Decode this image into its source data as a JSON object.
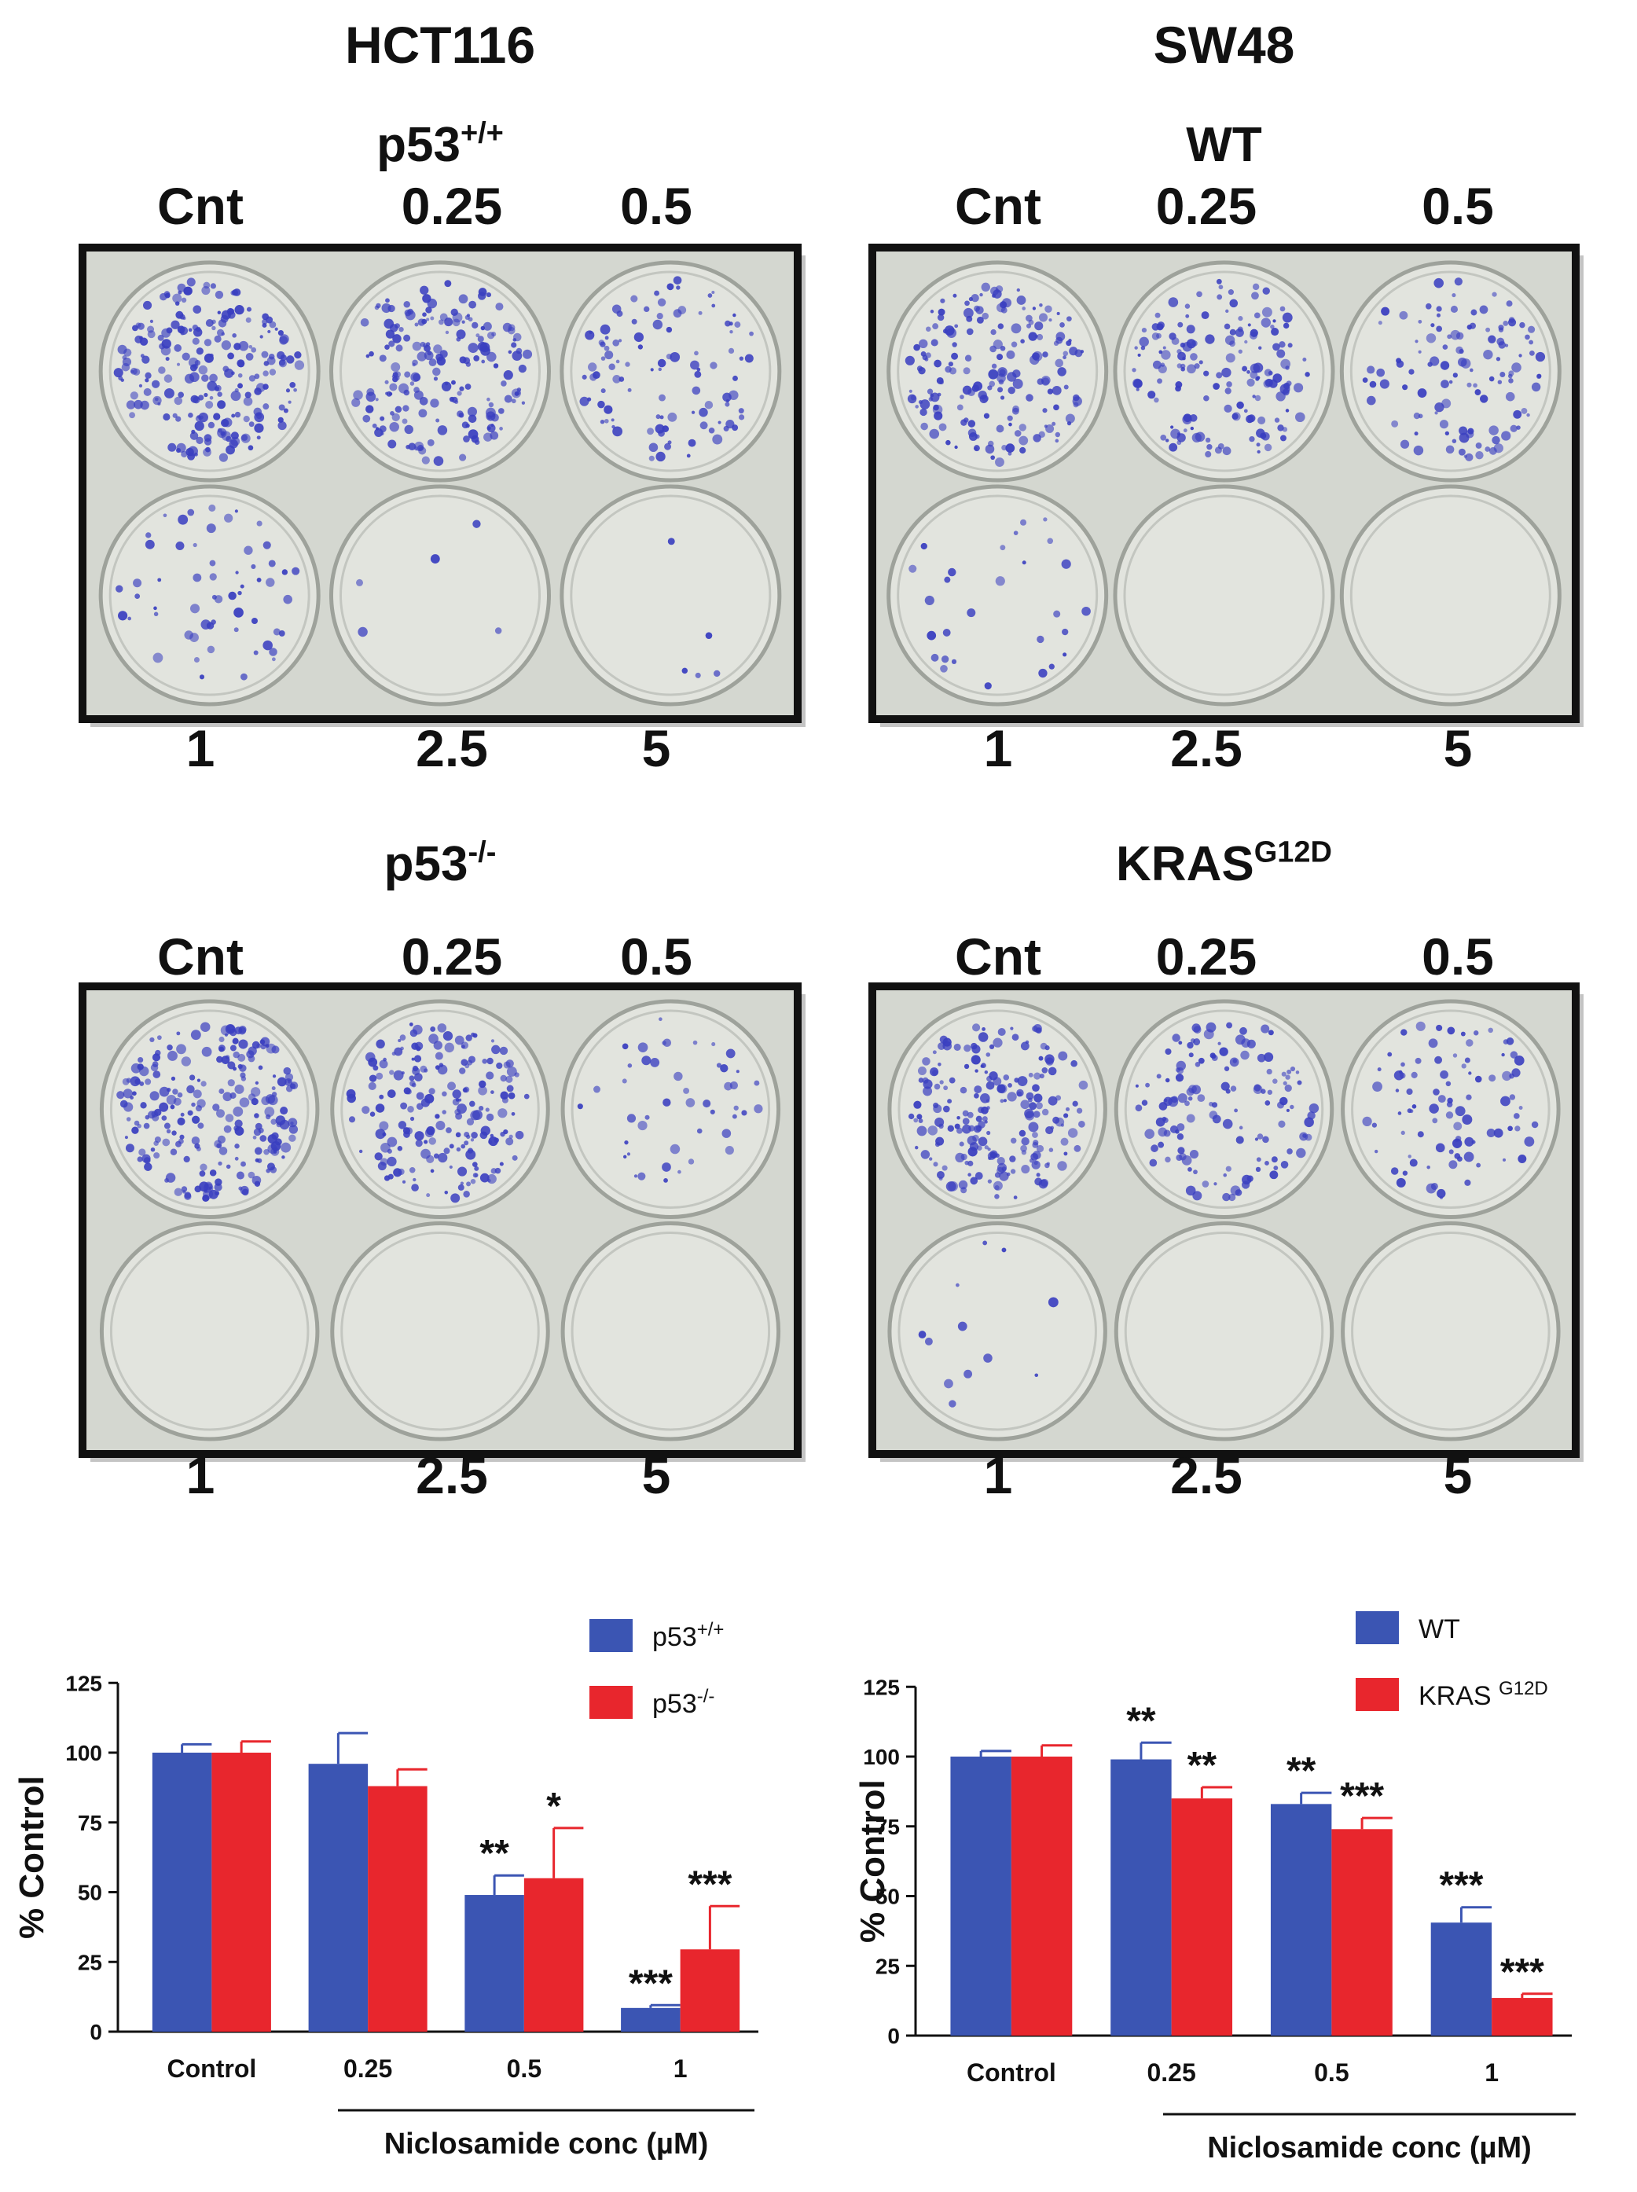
{
  "panels": [
    {
      "title": "HCT116",
      "plates": [
        {
          "label_base": "p53",
          "label_sup": "+/+",
          "top_labels": [
            "Cnt",
            "0.25",
            "0.5"
          ],
          "bottom_labels": [
            "1",
            "2.5",
            "5"
          ],
          "colony_density": [
            1.0,
            0.85,
            0.45,
            0.25,
            0.02,
            0.02
          ]
        },
        {
          "label_base": "p53",
          "label_sup": "-/-",
          "top_labels": [
            "Cnt",
            "0.25",
            "0.5"
          ],
          "bottom_labels": [
            "1",
            "2.5",
            "5"
          ],
          "colony_density": [
            1.0,
            0.85,
            0.2,
            0.0,
            0.0,
            0.0
          ]
        }
      ]
    },
    {
      "title": "SW48",
      "plates": [
        {
          "label_base": "WT",
          "label_sup": "",
          "top_labels": [
            "Cnt",
            "0.25",
            "0.5"
          ],
          "bottom_labels": [
            "1",
            "2.5",
            "5"
          ],
          "colony_density": [
            0.8,
            0.7,
            0.5,
            0.12,
            0.0,
            0.0
          ]
        },
        {
          "label_base": "KRAS",
          "label_sup": "G12D",
          "top_labels": [
            "Cnt",
            "0.25",
            "0.5"
          ],
          "bottom_labels": [
            "1",
            "2.5",
            "5"
          ],
          "colony_density": [
            0.9,
            0.6,
            0.4,
            0.05,
            0.0,
            0.0
          ]
        }
      ]
    }
  ],
  "colors": {
    "blue": "#3b55b3",
    "red": "#e8262d",
    "colony": "#3a3fc0",
    "plate_bg": "#d4d7d0",
    "plate_border": "#111111"
  },
  "chart_data": [
    {
      "type": "bar",
      "categories": [
        "Control",
        "0.25",
        "0.5",
        "1"
      ],
      "xlabel": "Niclosamide conc (µM)",
      "ylabel": "% Control",
      "ylim": [
        0,
        125
      ],
      "yticks": [
        "0",
        "25",
        "50",
        "75",
        "100",
        "125"
      ],
      "legend_position": "top-right",
      "series": [
        {
          "name": "p53",
          "name_sup": "+/+",
          "values": [
            100,
            96,
            49,
            8.5
          ],
          "errors": [
            3,
            11,
            7,
            1
          ],
          "significance": [
            "",
            "",
            "**",
            "***"
          ]
        },
        {
          "name": "p53",
          "name_sup": "-/-",
          "values": [
            100,
            88,
            55,
            29.5
          ],
          "errors": [
            4,
            6,
            18,
            15.5
          ],
          "significance": [
            "",
            "",
            "*",
            "***"
          ]
        }
      ]
    },
    {
      "type": "bar",
      "categories": [
        "Control",
        "0.25",
        "0.5",
        "1"
      ],
      "xlabel": "Niclosamide conc (µM)",
      "ylabel": "% Control",
      "ylim": [
        0,
        125
      ],
      "yticks": [
        "0",
        "25",
        "50",
        "75",
        "100",
        "125"
      ],
      "legend_position": "top-right",
      "series": [
        {
          "name": "WT",
          "name_sup": "",
          "values": [
            100,
            99,
            83,
            40.5
          ],
          "errors": [
            2,
            6,
            4,
            5.5
          ],
          "significance": [
            "",
            "**",
            "**",
            "***"
          ]
        },
        {
          "name": "KRAS ",
          "name_sup": "G12D",
          "values": [
            100,
            85,
            74,
            13.5
          ],
          "errors": [
            4,
            4,
            4,
            1.5
          ],
          "significance": [
            "",
            "**",
            "***",
            "***"
          ]
        }
      ]
    }
  ]
}
